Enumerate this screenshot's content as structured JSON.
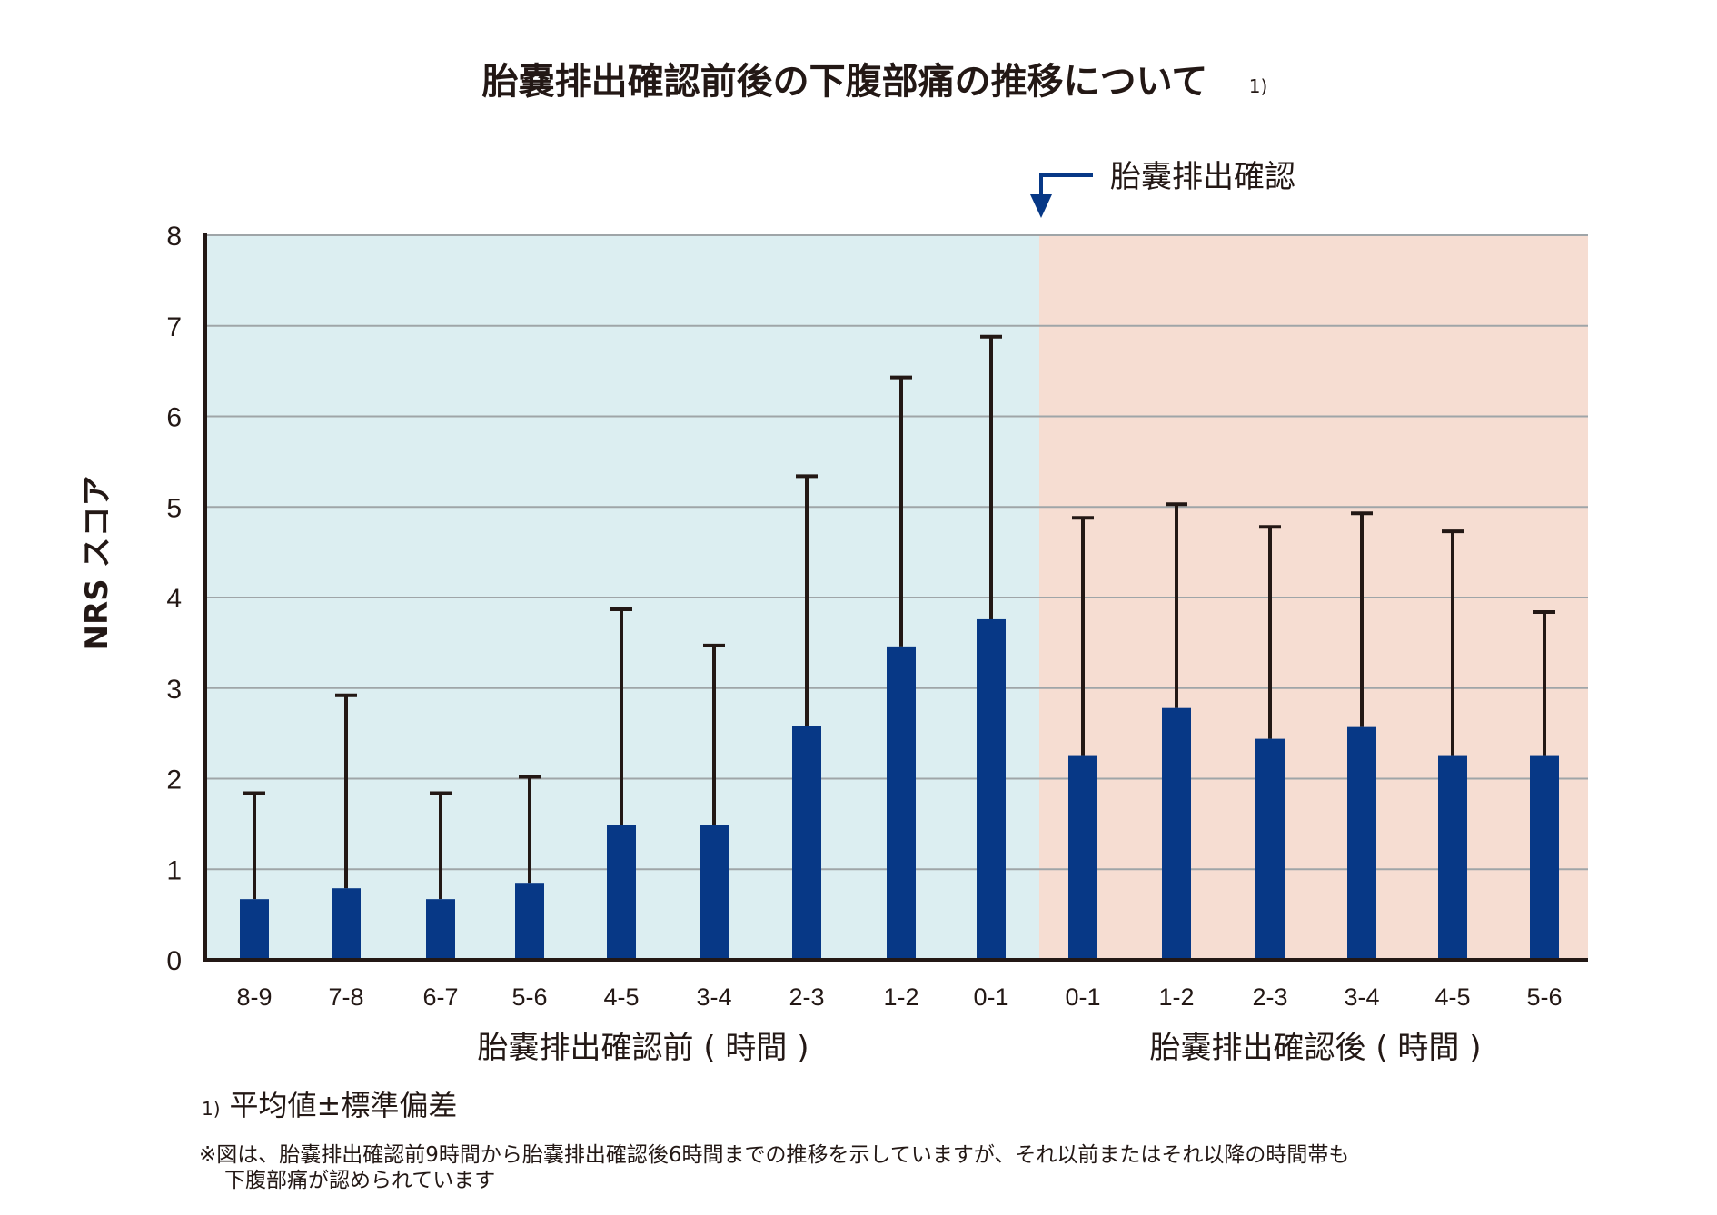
{
  "chart_data": {
    "type": "bar",
    "title": "胎嚢排出確認前後の下腹部痛の推移について",
    "title_note": "1)",
    "ylabel": "NRS スコア",
    "ylim": [
      0,
      8
    ],
    "yticks": [
      "0",
      "1",
      "2",
      "3",
      "4",
      "5",
      "6",
      "7",
      "8"
    ],
    "grid": true,
    "annotation": "胎嚢排出確認",
    "groups": [
      {
        "label": "胎嚢排出確認前 ( 時間 )",
        "background": "#dcEEF1",
        "categories": [
          "8-9",
          "7-8",
          "6-7",
          "5-6",
          "4-5",
          "3-4",
          "2-3",
          "1-2",
          "0-1"
        ],
        "mean": [
          0.67,
          0.79,
          0.67,
          0.85,
          1.49,
          1.49,
          2.58,
          3.46,
          3.76
        ],
        "mean_plus_sd": [
          1.84,
          2.92,
          1.84,
          2.02,
          3.87,
          3.47,
          5.34,
          6.43,
          6.88
        ]
      },
      {
        "label": "胎嚢排出確認後 ( 時間 )",
        "background": "#F6DDD2",
        "categories": [
          "0-1",
          "1-2",
          "2-3",
          "3-4",
          "4-5",
          "5-6"
        ],
        "mean": [
          2.26,
          2.78,
          2.44,
          2.57,
          2.26,
          2.26
        ],
        "mean_plus_sd": [
          4.88,
          5.03,
          4.78,
          4.93,
          4.73,
          3.84
        ]
      }
    ],
    "series": [
      {
        "name": "平均値",
        "color": "#073886"
      },
      {
        "name": "標準偏差",
        "color": "#231815"
      }
    ]
  },
  "footnotes": {
    "mark": "1)",
    "note1": "平均値±標準偏差",
    "note2_line1": "※図は、胎嚢排出確認前9時間から胎嚢排出確認後6時間までの推移を示していますが、それ以前またはそれ以降の時間帯も",
    "note2_line2": "下腹部痛が認められています"
  },
  "colors": {
    "bar": "#073886",
    "error_bar": "#231815",
    "grid": "#9fa5a8",
    "annotation_arrow": "#073886"
  }
}
